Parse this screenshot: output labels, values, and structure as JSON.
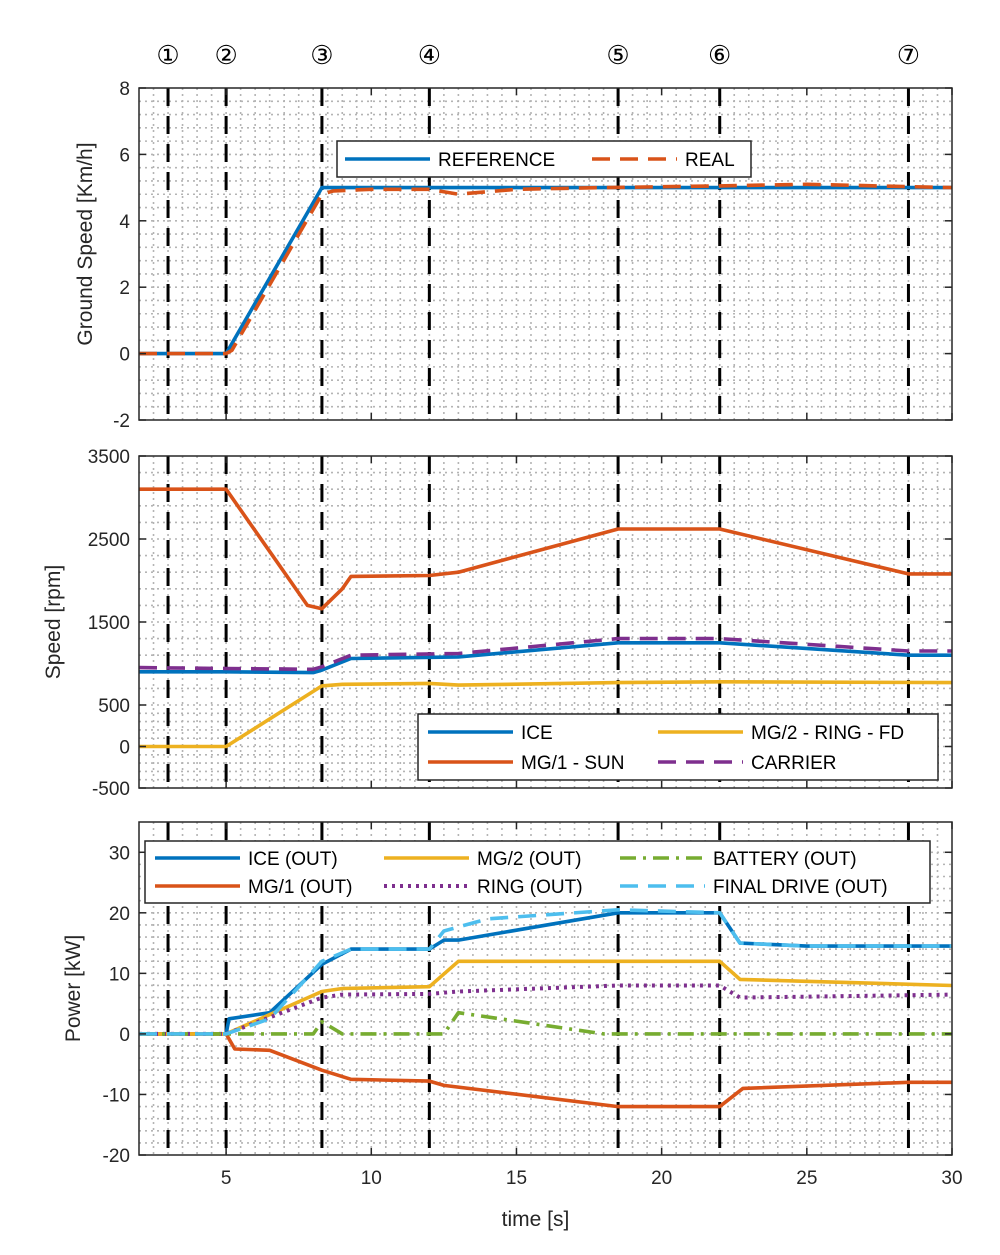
{
  "chart_data": [
    {
      "type": "line",
      "ylabel": "Ground Speed [Km/h]",
      "xlim": [
        2,
        30
      ],
      "ylim": [
        -2,
        8
      ],
      "yticks": [
        "-2",
        "0",
        "2",
        "4",
        "6",
        "8"
      ],
      "ytick_values": [
        -2,
        0,
        2,
        4,
        6,
        8
      ],
      "legend": "top-center",
      "series": [
        {
          "name": "REFERENCE",
          "color": "#0072BD",
          "style": "solid",
          "x": [
            2,
            5,
            8.3,
            30
          ],
          "y": [
            0,
            0,
            5,
            5
          ]
        },
        {
          "name": "REAL",
          "color": "#D95319",
          "style": "dashed",
          "x": [
            2,
            5,
            5.2,
            8.3,
            8.7,
            10,
            12,
            13,
            15,
            18,
            22,
            25,
            30
          ],
          "y": [
            0,
            0,
            0.1,
            4.8,
            4.9,
            4.95,
            4.95,
            4.8,
            4.95,
            5.0,
            5.05,
            5.1,
            5.0
          ]
        }
      ]
    },
    {
      "type": "line",
      "ylabel": "Speed [rpm]",
      "xlim": [
        2,
        30
      ],
      "ylim": [
        -500,
        3500
      ],
      "yticks": [
        "-500",
        "0",
        "500",
        "1500",
        "2500",
        "3500"
      ],
      "ytick_values": [
        -500,
        0,
        500,
        1500,
        2500,
        3500
      ],
      "legend": "bottom-right",
      "series": [
        {
          "name": "ICE",
          "color": "#0072BD",
          "style": "solid",
          "x": [
            2,
            5,
            8,
            8.3,
            9.3,
            13,
            18.5,
            22,
            28.5,
            30
          ],
          "y": [
            900,
            900,
            890,
            920,
            1060,
            1080,
            1250,
            1250,
            1100,
            1100
          ]
        },
        {
          "name": "MG/1 - SUN",
          "color": "#D95319",
          "style": "solid",
          "x": [
            2,
            5,
            7.8,
            8.3,
            9,
            9.3,
            12,
            13,
            18.5,
            22,
            28.5,
            30
          ],
          "y": [
            3100,
            3100,
            1700,
            1660,
            1900,
            2050,
            2060,
            2100,
            2620,
            2620,
            2080,
            2080
          ]
        },
        {
          "name": "MG/2 - RING - FD",
          "color": "#EDB120",
          "style": "solid",
          "x": [
            2,
            5,
            8.3,
            9,
            12,
            13,
            18.5,
            22,
            30
          ],
          "y": [
            0,
            0,
            730,
            750,
            760,
            740,
            770,
            780,
            770
          ]
        },
        {
          "name": "CARRIER",
          "color": "#7E2F8E",
          "style": "dashed",
          "x": [
            2,
            5,
            8,
            8.3,
            9.3,
            13,
            18.5,
            22,
            28.5,
            30
          ],
          "y": [
            950,
            940,
            930,
            960,
            1100,
            1120,
            1300,
            1300,
            1150,
            1150
          ]
        }
      ]
    },
    {
      "type": "line",
      "ylabel": "Power [kW]",
      "xlabel": "time [s]",
      "xlim": [
        2,
        30
      ],
      "ylim": [
        -20,
        35
      ],
      "xticks": [
        "5",
        "10",
        "15",
        "20",
        "25",
        "30"
      ],
      "xtick_values": [
        5,
        10,
        15,
        20,
        25,
        30
      ],
      "yticks": [
        "-20",
        "-10",
        "0",
        "10",
        "20",
        "30"
      ],
      "ytick_values": [
        -20,
        -10,
        0,
        10,
        20,
        30
      ],
      "legend": "top",
      "series": [
        {
          "name": "ICE (OUT)",
          "color": "#0072BD",
          "style": "solid",
          "x": [
            2,
            5,
            5.1,
            6.5,
            8.3,
            9.3,
            12,
            12.5,
            13,
            18.5,
            22,
            22.7,
            25,
            30
          ],
          "y": [
            0,
            0,
            2.5,
            3.5,
            11.5,
            14,
            14,
            15.5,
            15.5,
            20,
            20,
            15,
            14.5,
            14.5
          ]
        },
        {
          "name": "MG/1 (OUT)",
          "color": "#D95319",
          "style": "solid",
          "x": [
            2,
            5,
            5.3,
            6.5,
            8.3,
            9.3,
            12,
            12.5,
            18.5,
            22,
            22.8,
            28.5,
            30
          ],
          "y": [
            0,
            0,
            -2.5,
            -2.7,
            -6,
            -7.5,
            -7.8,
            -8.5,
            -12,
            -12,
            -9,
            -8,
            -8
          ]
        },
        {
          "name": "MG/2 (OUT)",
          "color": "#EDB120",
          "style": "solid",
          "x": [
            2,
            5,
            8.3,
            9,
            12,
            13,
            18.5,
            22,
            22.7,
            30
          ],
          "y": [
            0,
            0,
            7,
            7.5,
            7.8,
            12,
            12,
            12,
            9,
            8
          ]
        },
        {
          "name": "RING (OUT)",
          "color": "#7E2F8E",
          "style": "dotted",
          "x": [
            2,
            5,
            8.3,
            9,
            12,
            13,
            18.5,
            22,
            22.7,
            30
          ],
          "y": [
            0,
            0,
            6,
            6.5,
            6.6,
            7,
            8,
            8,
            6,
            6.5
          ]
        },
        {
          "name": "BATTERY (OUT)",
          "color": "#77AC30",
          "style": "dashdot",
          "x": [
            2,
            5,
            8,
            8.3,
            9,
            12,
            12.5,
            13,
            18,
            30
          ],
          "y": [
            0,
            0,
            0,
            2,
            0,
            0,
            0,
            3.5,
            0,
            0
          ]
        },
        {
          "name": "FINAL DRIVE (OUT)",
          "color": "#4DBEEE",
          "style": "dashed",
          "x": [
            2,
            5,
            6.5,
            8.3,
            9.3,
            12,
            12.5,
            14,
            18.5,
            22,
            22.7,
            25,
            30
          ],
          "y": [
            0,
            0,
            2.5,
            12,
            14,
            14,
            17,
            19,
            20.5,
            20,
            15,
            14.5,
            14.5
          ]
        }
      ]
    }
  ],
  "phases": {
    "labels": [
      "①",
      "②",
      "③",
      "④",
      "⑤",
      "⑥",
      "⑦"
    ],
    "times": [
      3,
      5,
      8.3,
      12,
      18.5,
      22,
      28.5
    ]
  }
}
